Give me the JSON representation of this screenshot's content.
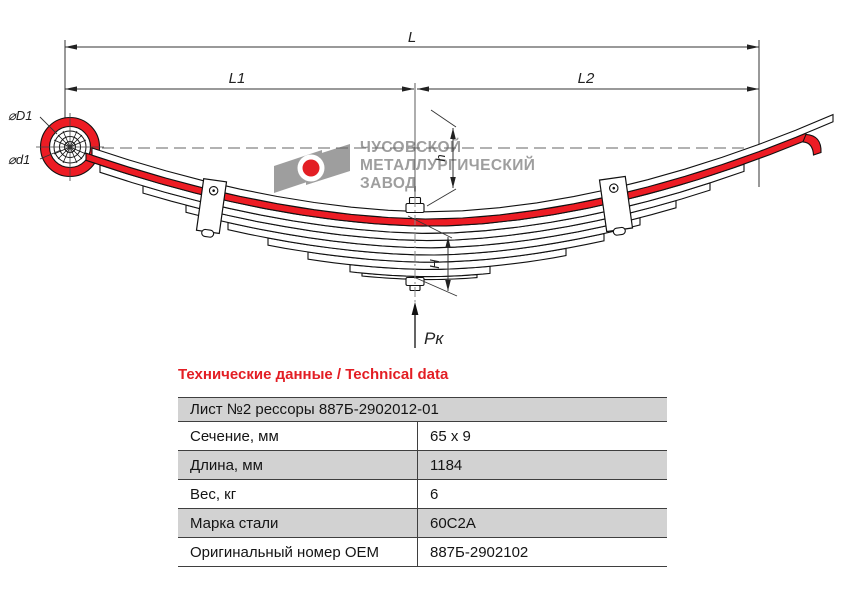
{
  "drawing": {
    "dim_total": "L",
    "dim_left_half": "L1",
    "dim_right_half": "L2",
    "eye_outer_dia": "⌀D1",
    "eye_inner_dia": "⌀d1",
    "arc_height": "h",
    "pack_height": "Н",
    "load_force": "Рк"
  },
  "watermark": {
    "line1": "ЧУСОВСКОЙ",
    "line2": "МЕТАЛЛУРГИЧЕСКИЙ",
    "line3": "ЗАВОД"
  },
  "section_title": "Технические данные / Technical data",
  "table": {
    "header": "Лист №2 рессоры 887Б-2902012-01",
    "rows": [
      {
        "label": "Сечение, мм",
        "value": "65 x 9"
      },
      {
        "label": "Длина, мм",
        "value": "1184"
      },
      {
        "label": "Вес, кг",
        "value": "6"
      },
      {
        "label": "Марка стали",
        "value": "60С2А"
      },
      {
        "label": "Оригинальный номер OEM",
        "value": "887Б-2902102"
      }
    ]
  },
  "colors": {
    "accent_red": "#e31e24",
    "leaf_red": "#ed1c24",
    "row_gray": "#d2d2d2",
    "logo_gray": "#9e9e9e"
  }
}
